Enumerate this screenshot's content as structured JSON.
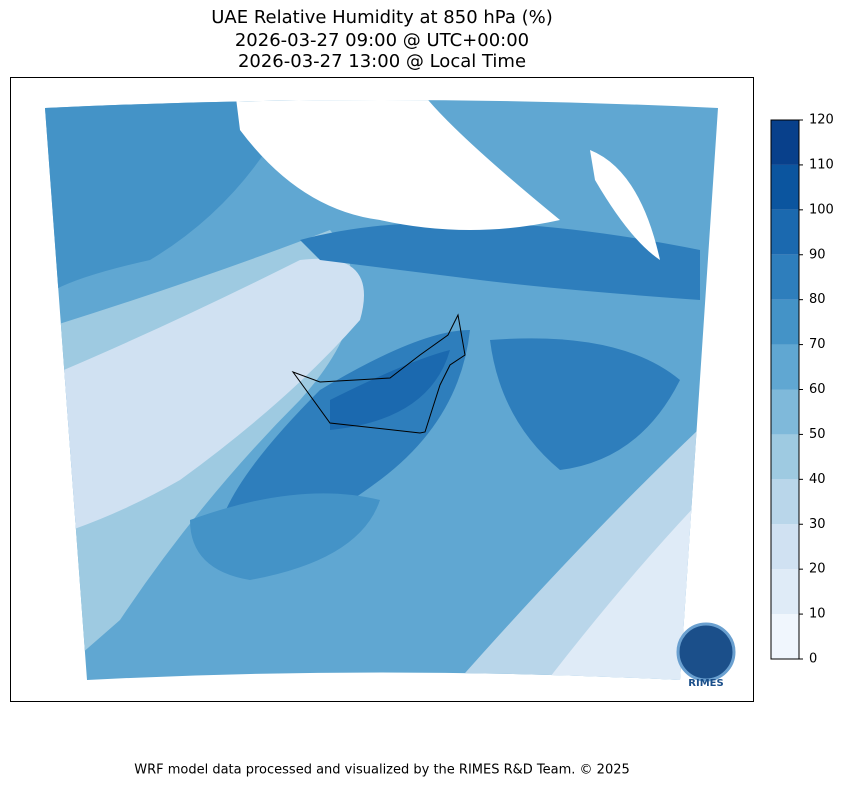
{
  "title": [
    "UAE Relative Humidity at 850 hPa (%)",
    "2026-03-27 09:00 @ UTC+00:00",
    "2026-03-27 13:00 @ Local Time"
  ],
  "colorbar": {
    "ticks": [
      0,
      10,
      20,
      30,
      40,
      50,
      60,
      70,
      80,
      90,
      100,
      110,
      120
    ],
    "colors": [
      "#f0f6fd",
      "#dfebf7",
      "#d0e1f2",
      "#b9d6ea",
      "#9ecae1",
      "#7fb9da",
      "#60a7d2",
      "#4493c7",
      "#2e7ebc",
      "#1b69af",
      "#0b559f",
      "#08408b"
    ]
  },
  "logo": "RIMES",
  "footer": "WRF model data processed and visualized by the RIMES R&D Team. © 2025"
}
